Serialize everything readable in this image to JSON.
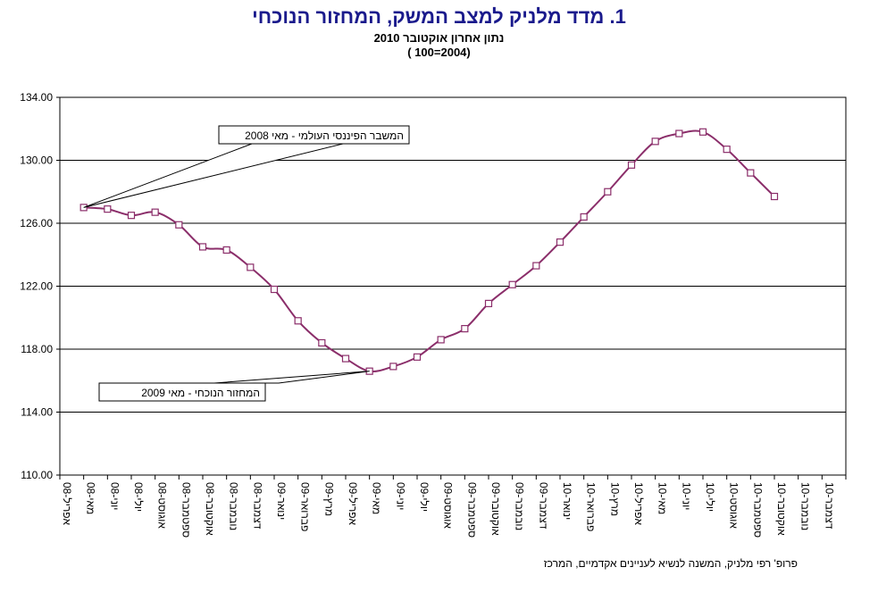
{
  "chart_data": {
    "type": "line",
    "title": "1.  מדד מלניק למצב המשק, המחזור הנוכחי",
    "subtitle": "נתון אחרון אוקטובר 2010",
    "subtitle2": "(2004=100 )",
    "ylim": [
      110,
      134
    ],
    "y_ticks": [
      "110.00",
      "114.00",
      "118.00",
      "122.00",
      "126.00",
      "130.00",
      "134.00"
    ],
    "grid": true,
    "categories": [
      "אפריל-08",
      "מאי-08",
      "יוני-08",
      "יולי-08",
      "אוגוסט-08",
      "ספטמבר-08",
      "אוקטובר-08",
      "נובמבר-08",
      "דצמבר-08",
      "ינואר-09",
      "פברואר-09",
      "מרץ-09",
      "אפריל-09",
      "מאי-09",
      "יוני-09",
      "יולי-09",
      "אוגוסט-09",
      "ספטמבר-09",
      "אוקטובר-09",
      "נובמבר-09",
      "דצמבר-09",
      "ינואר-10",
      "פברואר-10",
      "מרץ-10",
      "אפריל-10",
      "מאי-10",
      "יוני-10",
      "יולי-10",
      "אוגוסט-10",
      "ספטמבר-10",
      "אוקטובר-10",
      "נובמבר-10",
      "דצמבר-10"
    ],
    "series": [
      {
        "values": [
          null,
          127.0,
          126.9,
          126.5,
          126.7,
          125.9,
          124.5,
          124.3,
          123.2,
          121.8,
          119.8,
          118.4,
          117.4,
          116.6,
          116.9,
          117.5,
          118.6,
          119.3,
          120.9,
          122.1,
          123.3,
          124.8,
          126.4,
          128.0,
          129.7,
          131.2,
          131.7,
          131.8,
          130.7,
          129.2,
          127.7,
          null,
          null
        ],
        "color": "#8b2e6a"
      }
    ],
    "annotations": [
      {
        "text": "המשבר הפיננסי העולמי  - מאי 2008",
        "point_index": 1
      },
      {
        "text": "המחזור הנוכחי  - מאי 2009",
        "point_index": 13
      }
    ],
    "source": "פרופ' רפי מלניק, המשנה לנשיא לעניינים אקדמיים, המרכז"
  }
}
